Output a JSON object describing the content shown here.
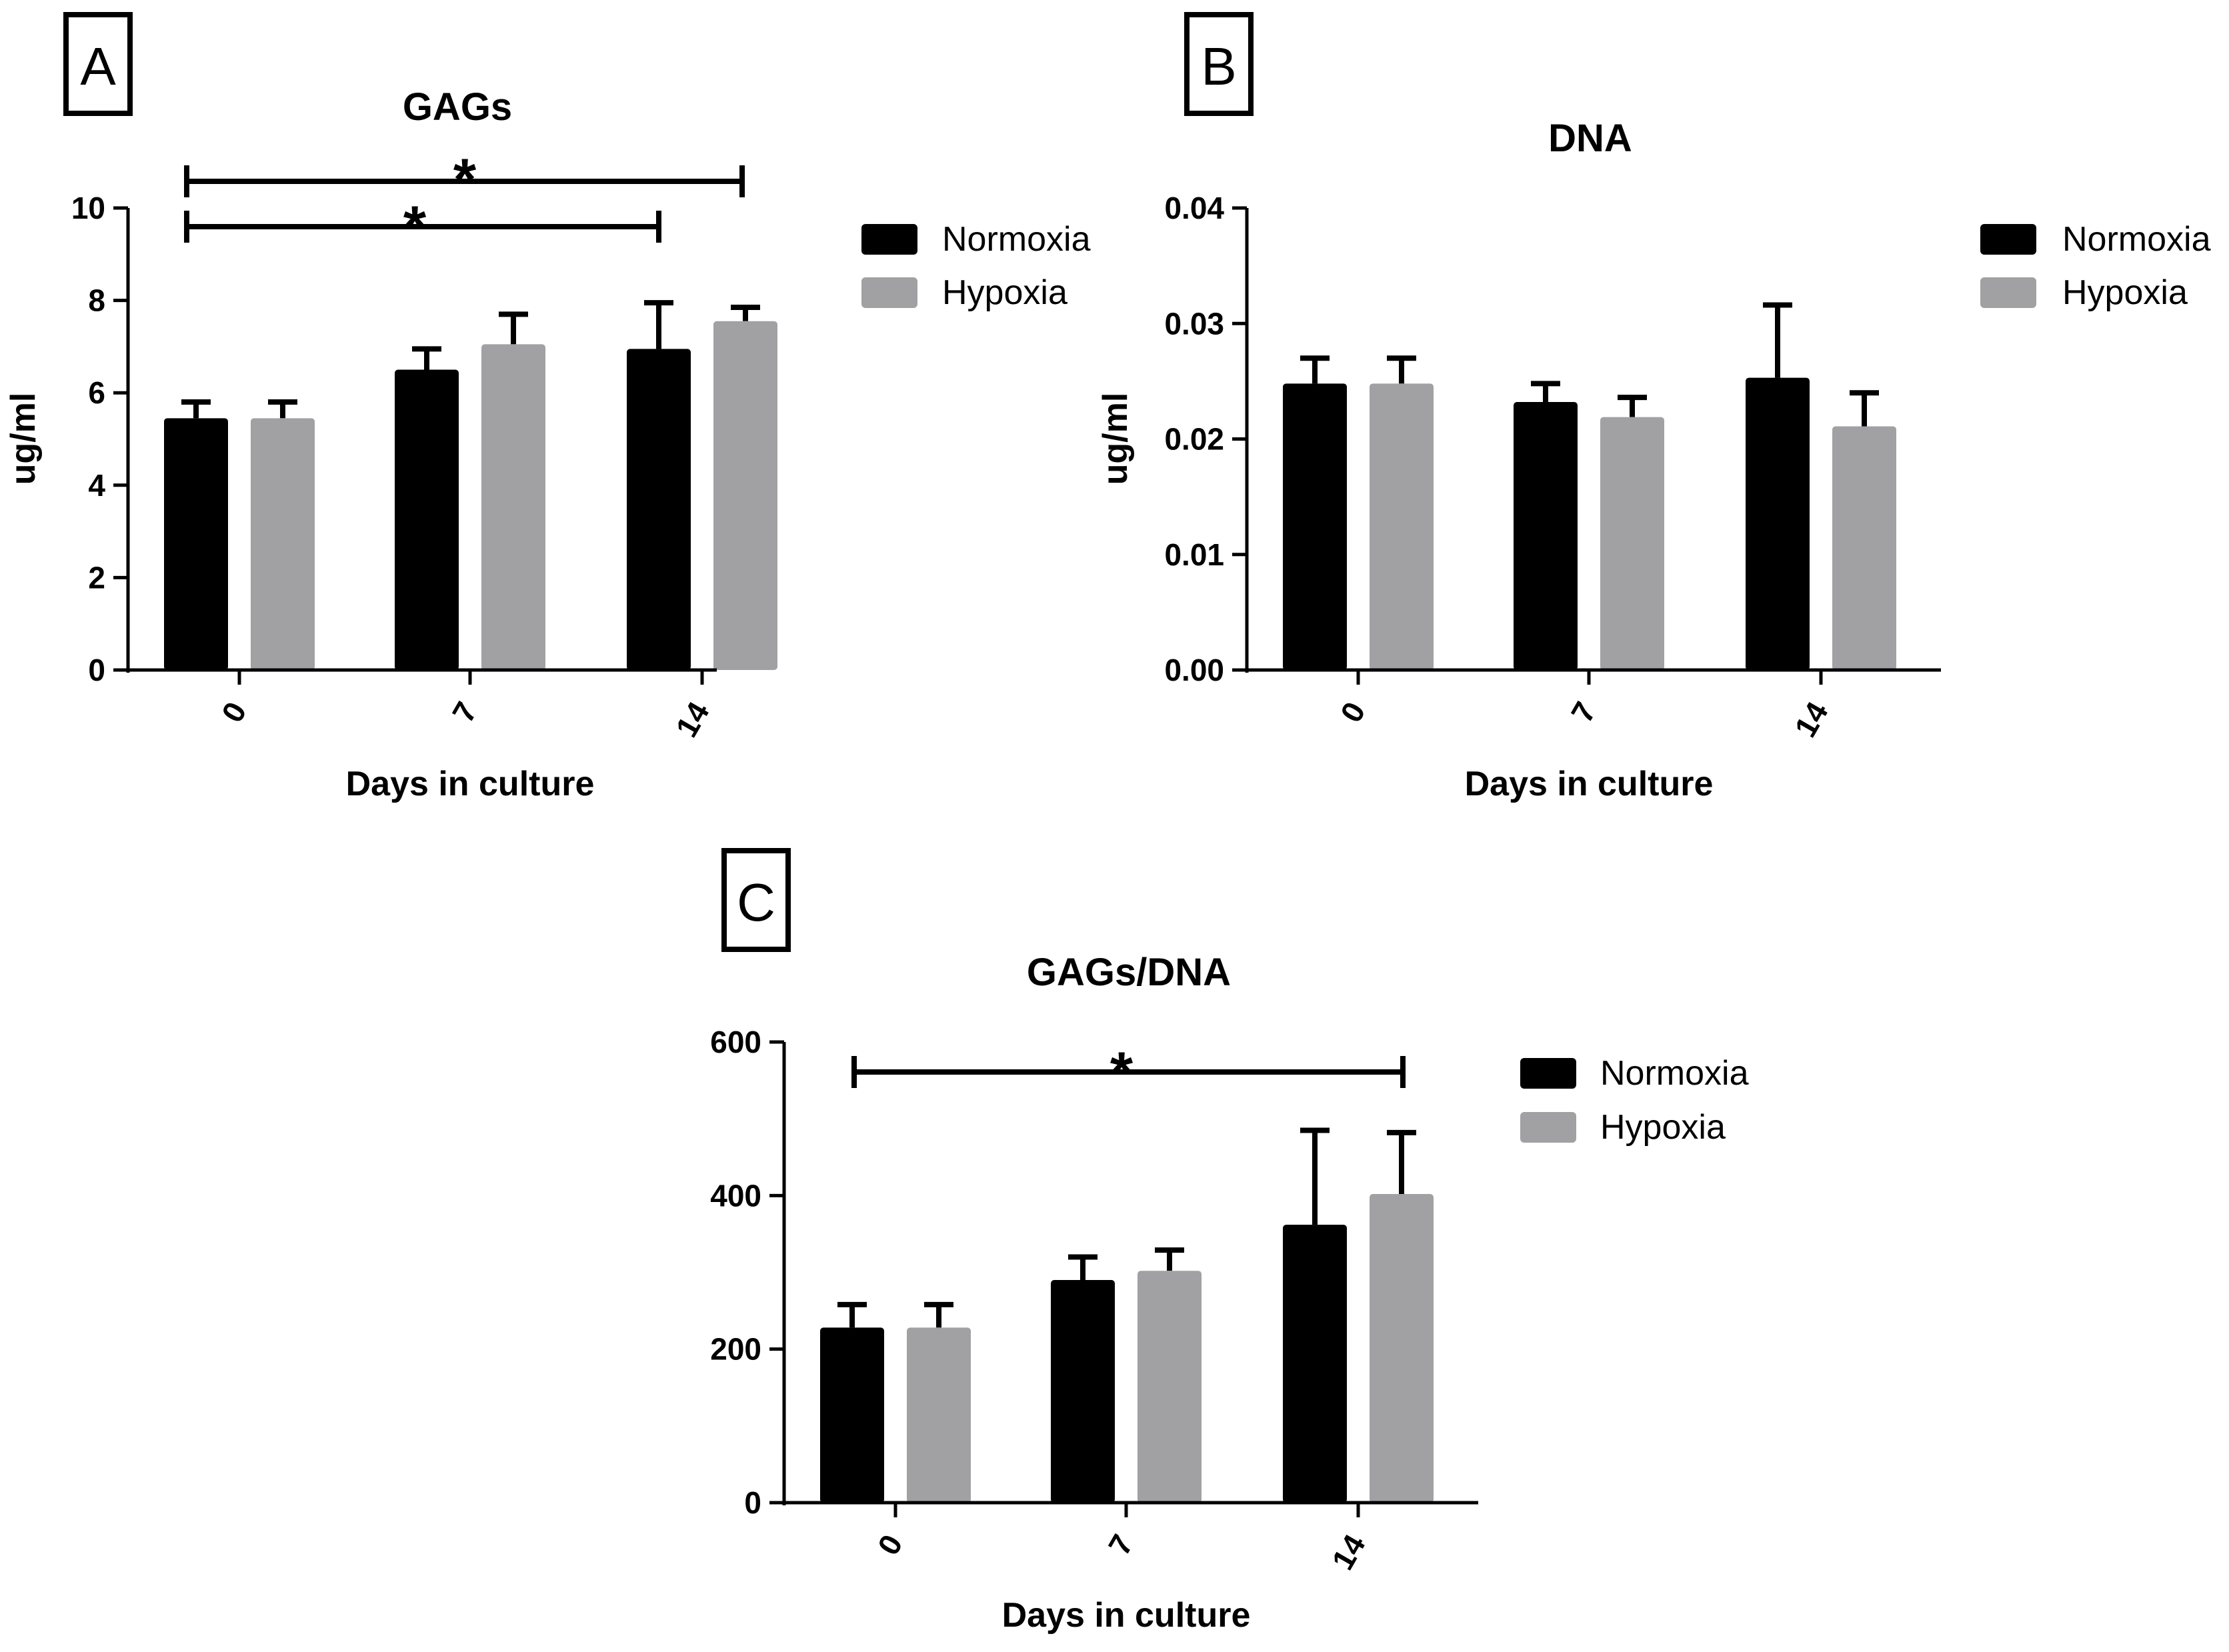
{
  "chart_data": [
    {
      "panel": "A",
      "type": "bar",
      "title": "GAGs",
      "xlabel": "Days in culture",
      "ylabel": "ug/ml",
      "ylim": [
        0,
        10
      ],
      "yticks": [
        "0",
        "2",
        "4",
        "6",
        "8",
        "10"
      ],
      "categories": [
        "0",
        "7",
        "14"
      ],
      "series": [
        {
          "name": "Normoxia",
          "color": "#000000",
          "values": [
            5.45,
            6.5,
            6.95
          ],
          "errors": [
            0.35,
            0.45,
            1.0
          ]
        },
        {
          "name": "Hypoxia",
          "color": "#a1a1a4",
          "values": [
            5.45,
            7.05,
            7.55
          ],
          "errors": [
            0.35,
            0.65,
            0.3
          ]
        }
      ],
      "significance": [
        {
          "label": "*",
          "from": "0",
          "to": "14",
          "level": 10.55
        },
        {
          "label": "*",
          "from": "0",
          "to": "14",
          "level": 9.55
        }
      ]
    },
    {
      "panel": "B",
      "type": "bar",
      "title": "DNA",
      "xlabel": "Days in culture",
      "ylabel": "ug/ml",
      "ylim": [
        0,
        0.04
      ],
      "yticks": [
        "0.00",
        "0.01",
        "0.02",
        "0.03",
        "0.04"
      ],
      "categories": [
        "0",
        "7",
        "14"
      ],
      "series": [
        {
          "name": "Normoxia",
          "color": "#000000",
          "values": [
            0.0248,
            0.0232,
            0.0253
          ],
          "errors": [
            0.0022,
            0.0016,
            0.0063
          ]
        },
        {
          "name": "Hypoxia",
          "color": "#a1a1a4",
          "values": [
            0.0248,
            0.0219,
            0.0211
          ],
          "errors": [
            0.0022,
            0.0017,
            0.0029
          ]
        }
      ],
      "significance": []
    },
    {
      "panel": "C",
      "type": "bar",
      "title": "GAGs/DNA",
      "xlabel": "Days in culture",
      "ylabel": "",
      "ylim": [
        0,
        600
      ],
      "yticks": [
        "0",
        "200",
        "400",
        "600"
      ],
      "categories": [
        "0",
        "7",
        "14"
      ],
      "series": [
        {
          "name": "Normoxia",
          "color": "#000000",
          "values": [
            228,
            290,
            362
          ],
          "errors": [
            30,
            30,
            123
          ]
        },
        {
          "name": "Hypoxia",
          "color": "#a1a1a4",
          "values": [
            228,
            302,
            402
          ],
          "errors": [
            30,
            27,
            80
          ]
        }
      ],
      "significance": [
        {
          "label": "*",
          "from": "0",
          "to": "14",
          "level": 560
        }
      ]
    }
  ]
}
